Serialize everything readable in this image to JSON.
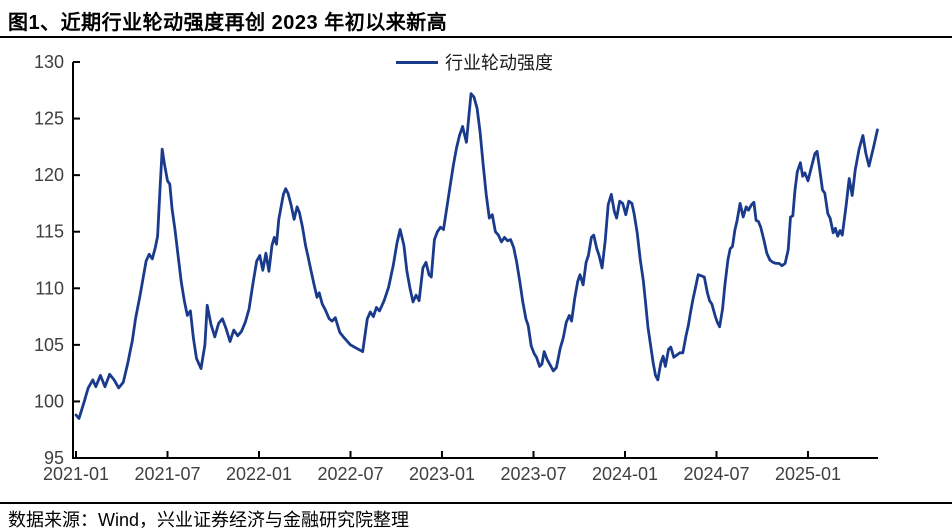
{
  "header": {
    "title": "图1、近期行业轮动强度再创 2023 年初以来新高"
  },
  "footer": {
    "source": "数据来源：Wind，兴业证券经济与金融研究院整理"
  },
  "colors": {
    "line": "#1A3A8C",
    "axis": "#000000",
    "tick_label": "#3F3F3F",
    "divider": "#000000"
  },
  "chart_data": {
    "type": "line",
    "title": "",
    "legend": [
      {
        "label": "行业轮动强度",
        "color": "#1A3A8C"
      }
    ],
    "legend_position": "top-center",
    "grid": false,
    "y_axis": {
      "min": 95,
      "max": 130,
      "step": 5,
      "tick_labels": [
        "95",
        "100",
        "105",
        "110",
        "115",
        "120",
        "125",
        "130"
      ]
    },
    "x_axis": {
      "unit": "months since 2021-01",
      "tick_t": [
        0,
        6,
        12,
        18,
        24,
        30,
        36,
        42,
        48
      ],
      "tick_labels": [
        "2021-01",
        "2021-07",
        "2022-01",
        "2022-07",
        "2023-01",
        "2023-07",
        "2024-01",
        "2024-07",
        "2025-01"
      ]
    },
    "series": [
      {
        "name": "行业轮动强度",
        "points": [
          [
            0.0,
            98.8
          ],
          [
            0.2,
            98.5
          ],
          [
            0.5,
            99.8
          ],
          [
            0.8,
            101.2
          ],
          [
            1.1,
            101.9
          ],
          [
            1.3,
            101.3
          ],
          [
            1.6,
            102.3
          ],
          [
            1.9,
            101.3
          ],
          [
            2.2,
            102.4
          ],
          [
            2.5,
            101.9
          ],
          [
            2.8,
            101.2
          ],
          [
            3.1,
            101.7
          ],
          [
            3.4,
            103.4
          ],
          [
            3.7,
            105.4
          ],
          [
            3.9,
            107.3
          ],
          [
            4.2,
            109.4
          ],
          [
            4.4,
            110.9
          ],
          [
            4.6,
            112.4
          ],
          [
            4.8,
            113.0
          ],
          [
            5.0,
            112.6
          ],
          [
            5.2,
            113.6
          ],
          [
            5.35,
            114.6
          ],
          [
            5.5,
            118.6
          ],
          [
            5.65,
            122.3
          ],
          [
            5.8,
            121.0
          ],
          [
            6.0,
            119.5
          ],
          [
            6.15,
            119.2
          ],
          [
            6.3,
            117.0
          ],
          [
            6.5,
            115.1
          ],
          [
            6.7,
            112.8
          ],
          [
            6.9,
            110.6
          ],
          [
            7.1,
            108.9
          ],
          [
            7.3,
            107.6
          ],
          [
            7.5,
            108.0
          ],
          [
            7.7,
            105.6
          ],
          [
            7.9,
            103.8
          ],
          [
            8.2,
            102.9
          ],
          [
            8.45,
            105.0
          ],
          [
            8.6,
            108.5
          ],
          [
            8.85,
            106.8
          ],
          [
            9.1,
            105.7
          ],
          [
            9.35,
            106.9
          ],
          [
            9.6,
            107.3
          ],
          [
            9.85,
            106.4
          ],
          [
            10.1,
            105.3
          ],
          [
            10.35,
            106.3
          ],
          [
            10.6,
            105.8
          ],
          [
            10.85,
            106.2
          ],
          [
            11.1,
            107.0
          ],
          [
            11.35,
            108.2
          ],
          [
            11.6,
            110.4
          ],
          [
            11.85,
            112.4
          ],
          [
            12.05,
            112.9
          ],
          [
            12.25,
            111.6
          ],
          [
            12.45,
            113.1
          ],
          [
            12.65,
            111.5
          ],
          [
            12.85,
            113.8
          ],
          [
            13.0,
            114.5
          ],
          [
            13.15,
            113.9
          ],
          [
            13.3,
            116.1
          ],
          [
            13.45,
            117.2
          ],
          [
            13.6,
            118.3
          ],
          [
            13.75,
            118.8
          ],
          [
            13.9,
            118.4
          ],
          [
            14.1,
            117.4
          ],
          [
            14.3,
            116.1
          ],
          [
            14.5,
            117.2
          ],
          [
            14.65,
            116.7
          ],
          [
            14.85,
            115.4
          ],
          [
            15.05,
            113.8
          ],
          [
            15.2,
            112.9
          ],
          [
            15.4,
            111.6
          ],
          [
            15.6,
            110.4
          ],
          [
            15.8,
            109.2
          ],
          [
            15.95,
            109.6
          ],
          [
            16.15,
            108.6
          ],
          [
            16.35,
            108.1
          ],
          [
            16.6,
            107.3
          ],
          [
            16.8,
            107.1
          ],
          [
            17.0,
            107.4
          ],
          [
            17.3,
            106.1
          ],
          [
            17.6,
            105.6
          ],
          [
            18.0,
            105.0
          ],
          [
            18.4,
            104.7
          ],
          [
            18.8,
            104.4
          ],
          [
            19.1,
            107.3
          ],
          [
            19.3,
            107.9
          ],
          [
            19.5,
            107.5
          ],
          [
            19.7,
            108.3
          ],
          [
            19.9,
            108.0
          ],
          [
            20.2,
            108.9
          ],
          [
            20.5,
            110.1
          ],
          [
            20.8,
            112.0
          ],
          [
            21.05,
            114.0
          ],
          [
            21.25,
            115.2
          ],
          [
            21.5,
            113.8
          ],
          [
            21.7,
            111.5
          ],
          [
            21.9,
            110.0
          ],
          [
            22.1,
            108.8
          ],
          [
            22.3,
            109.4
          ],
          [
            22.5,
            108.9
          ],
          [
            22.75,
            111.8
          ],
          [
            22.95,
            112.3
          ],
          [
            23.15,
            111.2
          ],
          [
            23.3,
            111.0
          ],
          [
            23.5,
            114.3
          ],
          [
            23.7,
            115.0
          ],
          [
            23.9,
            115.4
          ],
          [
            24.1,
            115.2
          ],
          [
            24.35,
            117.4
          ],
          [
            24.55,
            119.2
          ],
          [
            24.75,
            120.9
          ],
          [
            24.95,
            122.4
          ],
          [
            25.15,
            123.5
          ],
          [
            25.35,
            124.3
          ],
          [
            25.6,
            122.9
          ],
          [
            25.9,
            127.2
          ],
          [
            26.1,
            126.9
          ],
          [
            26.3,
            125.9
          ],
          [
            26.5,
            123.8
          ],
          [
            26.7,
            120.9
          ],
          [
            26.9,
            118.3
          ],
          [
            27.1,
            116.2
          ],
          [
            27.3,
            116.5
          ],
          [
            27.5,
            115.0
          ],
          [
            27.7,
            114.7
          ],
          [
            27.9,
            114.1
          ],
          [
            28.1,
            114.5
          ],
          [
            28.3,
            114.2
          ],
          [
            28.5,
            114.3
          ],
          [
            28.7,
            113.6
          ],
          [
            28.9,
            112.3
          ],
          [
            29.1,
            110.6
          ],
          [
            29.3,
            108.8
          ],
          [
            29.5,
            107.3
          ],
          [
            29.65,
            106.7
          ],
          [
            29.85,
            104.9
          ],
          [
            30.05,
            104.2
          ],
          [
            30.2,
            103.9
          ],
          [
            30.4,
            103.1
          ],
          [
            30.55,
            103.3
          ],
          [
            30.7,
            104.4
          ],
          [
            30.9,
            103.7
          ],
          [
            31.1,
            103.2
          ],
          [
            31.3,
            102.7
          ],
          [
            31.5,
            103.0
          ],
          [
            31.75,
            104.7
          ],
          [
            31.95,
            105.6
          ],
          [
            32.15,
            107.0
          ],
          [
            32.35,
            107.6
          ],
          [
            32.5,
            107.1
          ],
          [
            32.7,
            109.1
          ],
          [
            32.9,
            110.6
          ],
          [
            33.05,
            111.2
          ],
          [
            33.25,
            110.3
          ],
          [
            33.45,
            112.3
          ],
          [
            33.6,
            112.9
          ],
          [
            33.8,
            114.5
          ],
          [
            33.95,
            114.7
          ],
          [
            34.15,
            113.5
          ],
          [
            34.3,
            112.9
          ],
          [
            34.5,
            111.8
          ],
          [
            34.7,
            114.2
          ],
          [
            34.9,
            117.4
          ],
          [
            35.1,
            118.3
          ],
          [
            35.3,
            116.8
          ],
          [
            35.45,
            116.2
          ],
          [
            35.65,
            117.7
          ],
          [
            35.85,
            117.5
          ],
          [
            36.05,
            116.5
          ],
          [
            36.25,
            117.7
          ],
          [
            36.45,
            117.5
          ],
          [
            36.6,
            116.6
          ],
          [
            36.8,
            114.9
          ],
          [
            37.0,
            112.5
          ],
          [
            37.2,
            110.7
          ],
          [
            37.35,
            108.7
          ],
          [
            37.5,
            106.6
          ],
          [
            37.65,
            105.2
          ],
          [
            37.85,
            103.4
          ],
          [
            38.0,
            102.3
          ],
          [
            38.15,
            101.9
          ],
          [
            38.35,
            103.4
          ],
          [
            38.5,
            104.0
          ],
          [
            38.65,
            103.1
          ],
          [
            38.85,
            104.6
          ],
          [
            39.0,
            104.8
          ],
          [
            39.2,
            103.9
          ],
          [
            39.4,
            104.1
          ],
          [
            39.6,
            104.3
          ],
          [
            39.8,
            104.3
          ],
          [
            40.0,
            105.8
          ],
          [
            40.15,
            106.7
          ],
          [
            40.3,
            107.9
          ],
          [
            40.45,
            109.0
          ],
          [
            40.6,
            109.9
          ],
          [
            40.8,
            111.2
          ],
          [
            41.0,
            111.1
          ],
          [
            41.2,
            111.0
          ],
          [
            41.4,
            109.6
          ],
          [
            41.55,
            108.9
          ],
          [
            41.7,
            108.6
          ],
          [
            41.9,
            107.6
          ],
          [
            42.05,
            107.0
          ],
          [
            42.2,
            106.6
          ],
          [
            42.4,
            108.2
          ],
          [
            42.55,
            110.3
          ],
          [
            42.75,
            112.5
          ],
          [
            42.9,
            113.5
          ],
          [
            43.05,
            113.7
          ],
          [
            43.2,
            115.1
          ],
          [
            43.35,
            116.0
          ],
          [
            43.55,
            117.5
          ],
          [
            43.75,
            116.3
          ],
          [
            43.95,
            117.2
          ],
          [
            44.1,
            116.9
          ],
          [
            44.3,
            117.4
          ],
          [
            44.45,
            117.6
          ],
          [
            44.6,
            116.0
          ],
          [
            44.75,
            115.9
          ],
          [
            44.9,
            115.4
          ],
          [
            45.1,
            114.3
          ],
          [
            45.3,
            113.1
          ],
          [
            45.5,
            112.5
          ],
          [
            45.7,
            112.3
          ],
          [
            45.9,
            112.2
          ],
          [
            46.1,
            112.2
          ],
          [
            46.3,
            112.0
          ],
          [
            46.5,
            112.2
          ],
          [
            46.7,
            113.4
          ],
          [
            46.85,
            116.3
          ],
          [
            47.0,
            116.4
          ],
          [
            47.15,
            118.7
          ],
          [
            47.3,
            120.3
          ],
          [
            47.5,
            121.1
          ],
          [
            47.65,
            119.9
          ],
          [
            47.8,
            120.2
          ],
          [
            48.0,
            119.5
          ],
          [
            48.2,
            120.6
          ],
          [
            48.45,
            121.9
          ],
          [
            48.6,
            122.1
          ],
          [
            48.8,
            120.2
          ],
          [
            48.95,
            118.7
          ],
          [
            49.1,
            118.4
          ],
          [
            49.3,
            116.6
          ],
          [
            49.45,
            116.2
          ],
          [
            49.65,
            114.9
          ],
          [
            49.8,
            115.3
          ],
          [
            49.95,
            114.6
          ],
          [
            50.1,
            115.1
          ],
          [
            50.25,
            114.7
          ],
          [
            50.5,
            117.3
          ],
          [
            50.7,
            119.7
          ],
          [
            50.9,
            118.2
          ],
          [
            51.1,
            120.5
          ],
          [
            51.35,
            122.3
          ],
          [
            51.6,
            123.5
          ],
          [
            51.8,
            121.9
          ],
          [
            52.0,
            120.8
          ],
          [
            52.3,
            122.5
          ],
          [
            52.55,
            124.0
          ]
        ]
      }
    ]
  }
}
